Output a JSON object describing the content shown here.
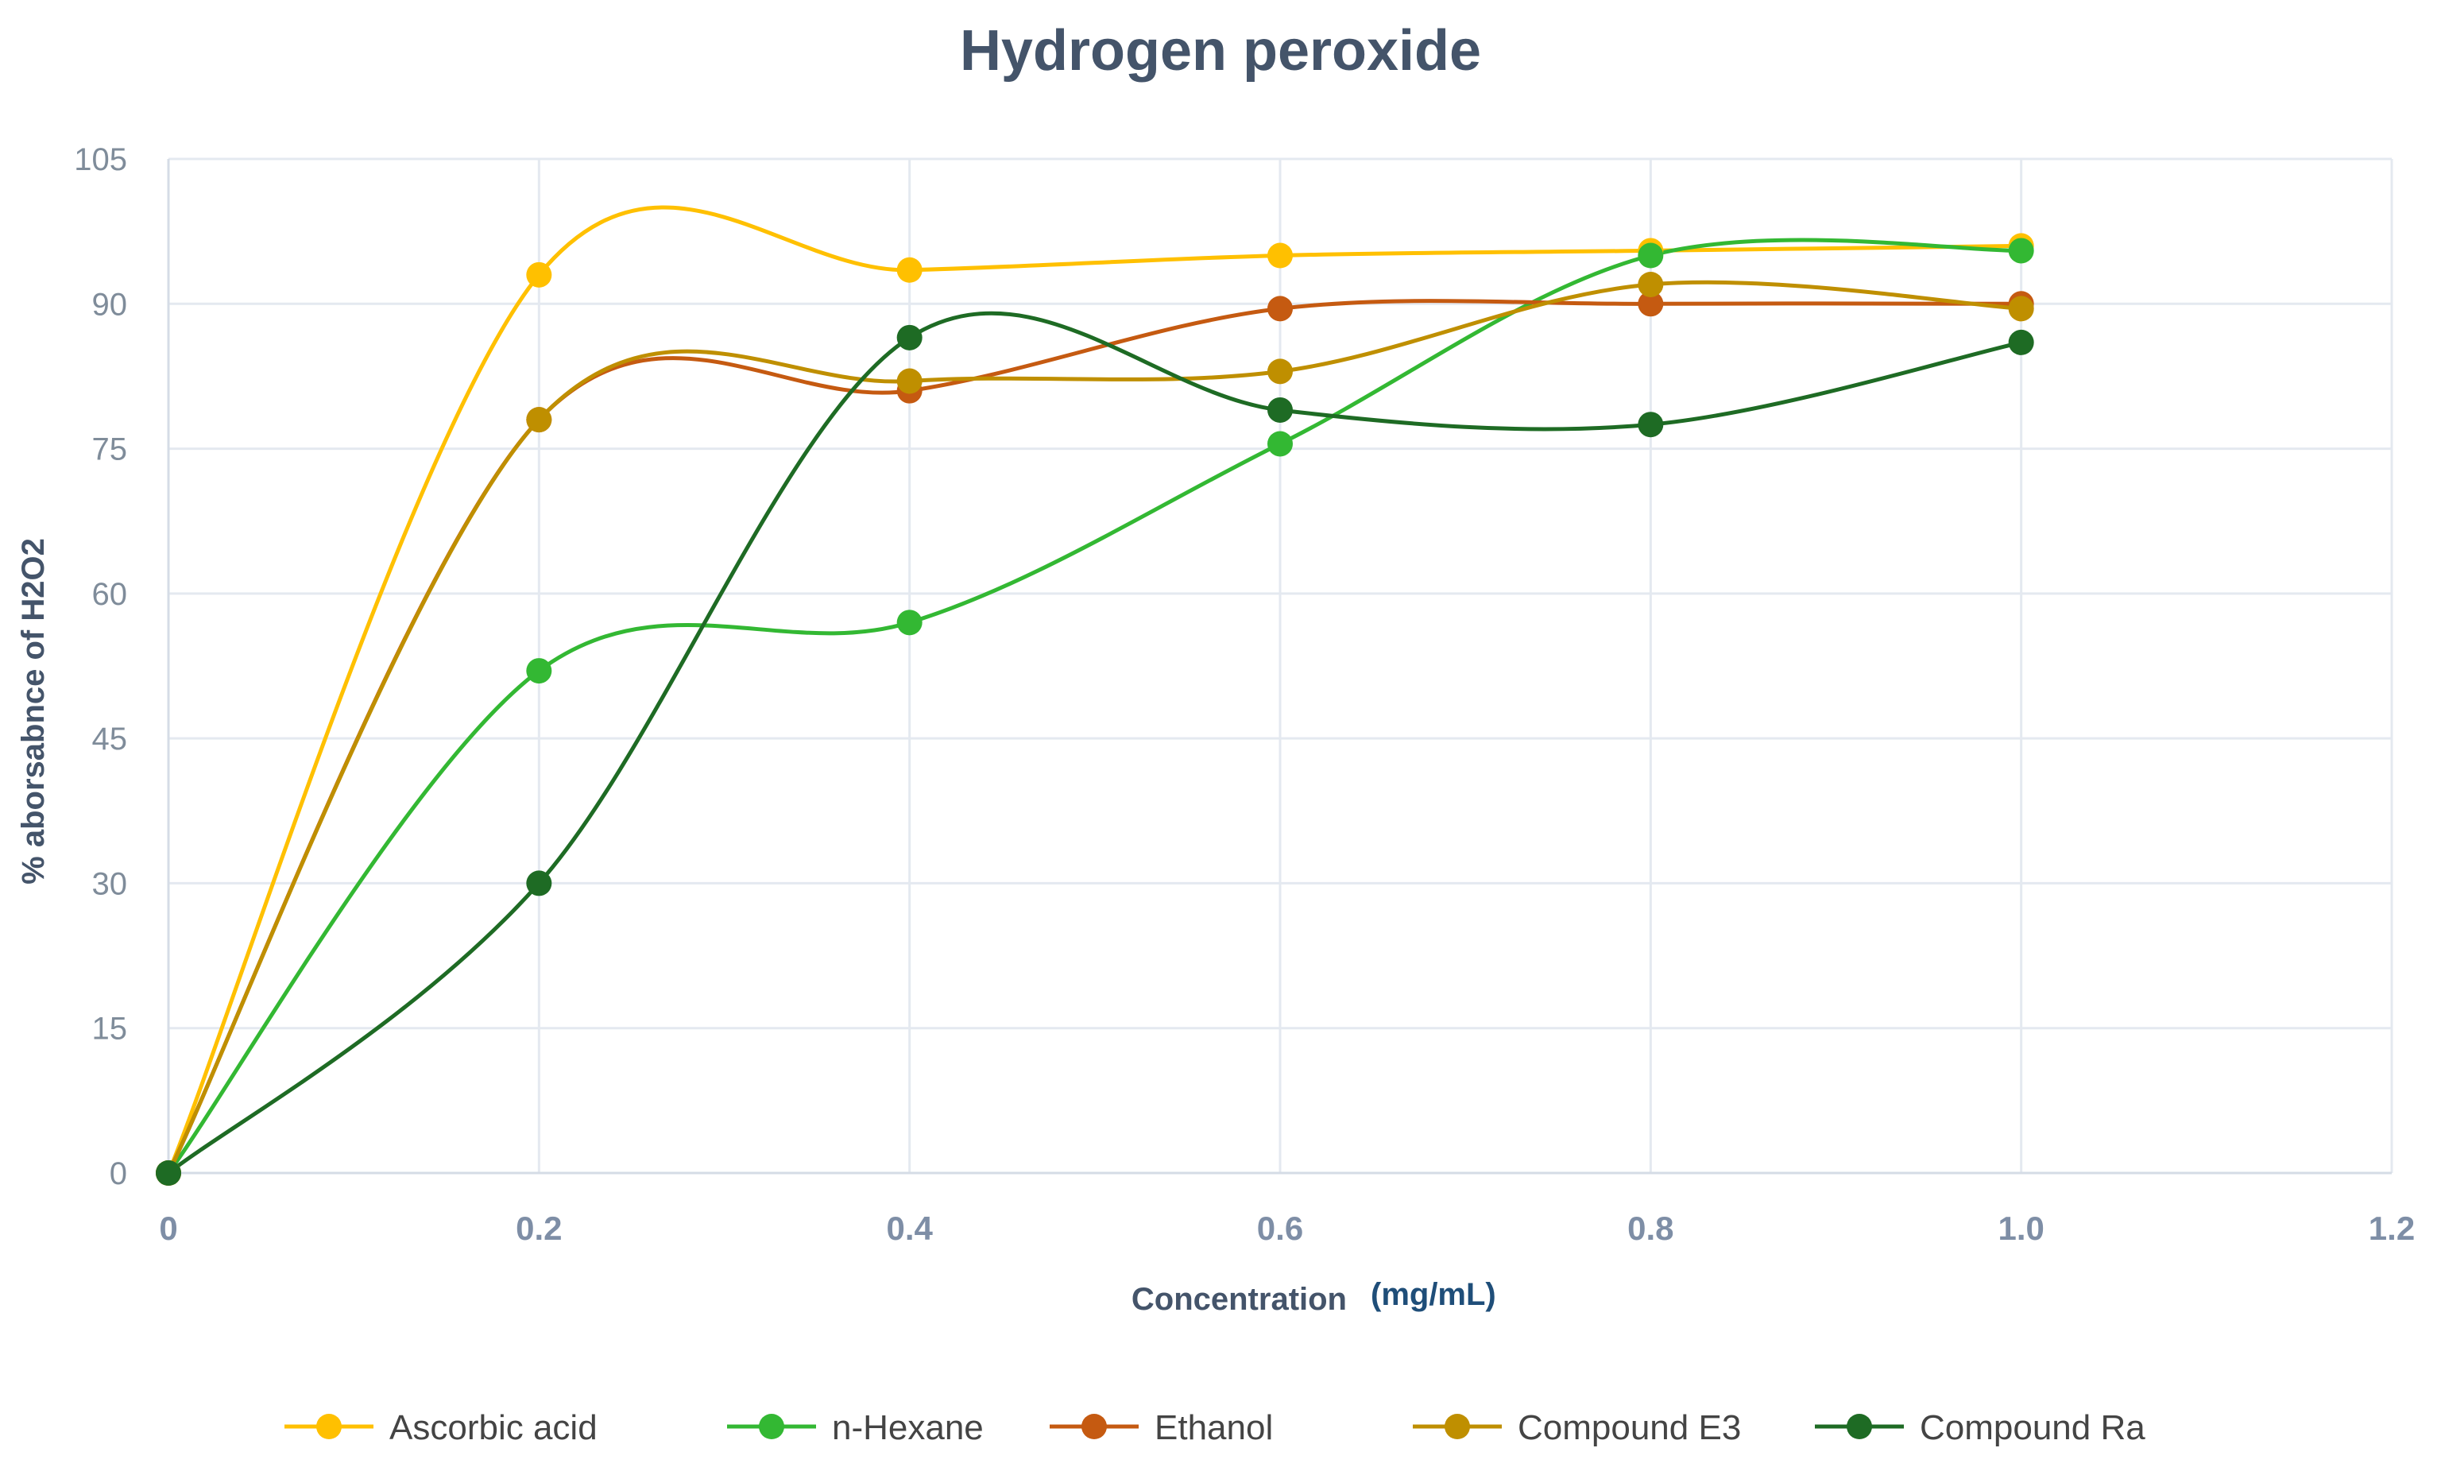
{
  "chart_data": {
    "type": "line",
    "title": "Hydrogen peroxide",
    "xlabel": "Concentration",
    "xlabel_unit": "(mg/mL)",
    "ylabel": "% aborsabnce of H2O2",
    "x": [
      0,
      0.2,
      0.4,
      0.6,
      0.8,
      1.0
    ],
    "xlim": [
      0,
      1.2
    ],
    "ylim": [
      0,
      105
    ],
    "x_ticks": [
      {
        "value": 0,
        "label": "0"
      },
      {
        "value": 0.2,
        "label": "0.2"
      },
      {
        "value": 0.4,
        "label": "0.4"
      },
      {
        "value": 0.6,
        "label": "0.6"
      },
      {
        "value": 0.8,
        "label": "0.8"
      },
      {
        "value": 1.0,
        "label": "1.0"
      },
      {
        "value": 1.2,
        "label": "1.2"
      }
    ],
    "y_ticks": [
      {
        "value": 0,
        "label": "0"
      },
      {
        "value": 15,
        "label": "15"
      },
      {
        "value": 30,
        "label": "30"
      },
      {
        "value": 45,
        "label": "45"
      },
      {
        "value": 60,
        "label": "60"
      },
      {
        "value": 75,
        "label": "75"
      },
      {
        "value": 90,
        "label": "90"
      },
      {
        "value": 105,
        "label": "105"
      }
    ],
    "grid": true,
    "legend_position": "bottom",
    "series": [
      {
        "name": "Ascorbic acid",
        "color": "#ffc000",
        "values": [
          0,
          93,
          93.5,
          95,
          95.5,
          96
        ]
      },
      {
        "name": "n-Hexane",
        "color": "#33b833",
        "values": [
          0,
          52,
          57,
          75.5,
          95,
          95.5
        ]
      },
      {
        "name": "Ethanol",
        "color": "#c55a11",
        "values": [
          0,
          78,
          81,
          89.5,
          90,
          90
        ]
      },
      {
        "name": "Compound E3",
        "color": "#bf8f00",
        "values": [
          0,
          78,
          82,
          83,
          92,
          89.5
        ]
      },
      {
        "name": "Compound Ra",
        "color": "#1e6b24",
        "values": [
          0,
          30,
          86.5,
          79,
          77.5,
          86
        ]
      }
    ]
  }
}
